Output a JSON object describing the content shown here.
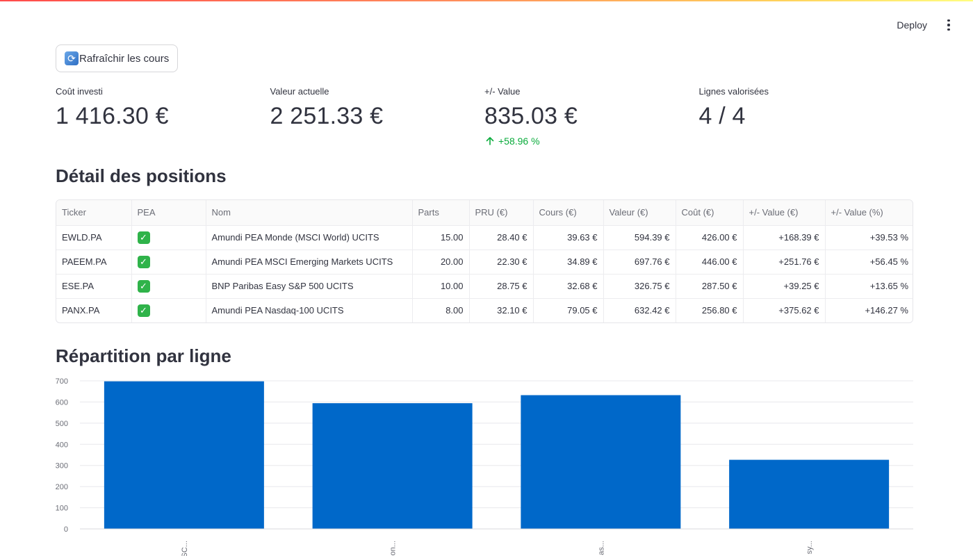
{
  "header": {
    "deploy_label": "Deploy",
    "menu_icon": "kebab-menu-icon"
  },
  "actions": {
    "refresh_label": "Rafraîchir les cours",
    "refresh_icon": "refresh-icon"
  },
  "metrics": [
    {
      "label": "Coût investi",
      "value": "1 416.30 €"
    },
    {
      "label": "Valeur actuelle",
      "value": "2 251.33 €"
    },
    {
      "label": "+/- Value",
      "value": "835.03 €",
      "delta": "+58.96 %",
      "delta_color": "#09ab3b"
    },
    {
      "label": "Lignes valorisées",
      "value": "4 / 4"
    }
  ],
  "positions": {
    "title": "Détail des positions",
    "columns": [
      "Ticker",
      "PEA",
      "Nom",
      "Parts",
      "PRU (€)",
      "Cours (€)",
      "Valeur (€)",
      "Coût (€)",
      "+/- Value (€)",
      "+/- Value (%)"
    ],
    "rows": [
      [
        "EWLD.PA",
        "✓",
        "Amundi PEA Monde (MSCI World) UCITS",
        "15.00",
        "28.40 €",
        "39.63 €",
        "594.39 €",
        "426.00 €",
        "+168.39 €",
        "+39.53 %"
      ],
      [
        "PAEEM.PA",
        "✓",
        "Amundi PEA MSCI Emerging Markets UCITS",
        "20.00",
        "22.30 €",
        "34.89 €",
        "697.76 €",
        "446.00 €",
        "+251.76 €",
        "+56.45 %"
      ],
      [
        "ESE.PA",
        "✓",
        "BNP Paribas Easy S&P 500 UCITS",
        "10.00",
        "28.75 €",
        "32.68 €",
        "326.75 €",
        "287.50 €",
        "+39.25 €",
        "+13.65 %"
      ],
      [
        "PANX.PA",
        "✓",
        "Amundi PEA Nasdaq-100 UCITS",
        "8.00",
        "32.10 €",
        "79.05 €",
        "632.42 €",
        "256.80 €",
        "+375.62 €",
        "+146.27 %"
      ]
    ]
  },
  "chart_section_title": "Répartition par ligne",
  "chart_data": {
    "type": "bar",
    "categories": [
      "Amundi PEA MSC...",
      "Amundi PEA Mon...",
      "Amundi PEA Nas...",
      "BNP Paribas Easy..."
    ],
    "category_labels_visible": [
      "SC...",
      "on...",
      "as...",
      "sy..."
    ],
    "values": [
      697.76,
      594.39,
      632.42,
      326.75
    ],
    "ylim": [
      0,
      700
    ],
    "yticks": [
      0,
      100,
      200,
      300,
      400,
      500,
      600,
      700
    ],
    "bar_color": "#0068c9",
    "grid": true
  }
}
